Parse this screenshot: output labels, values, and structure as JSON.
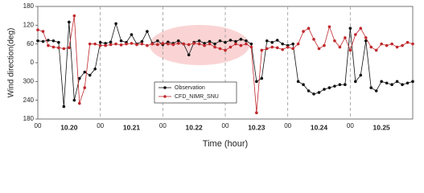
{
  "chart_data": {
    "type": "line",
    "y_label": "Wind direction(deg)",
    "x_label": "Time (hour)",
    "categories": [
      "10.20",
      "10.21",
      "10.22",
      "10.23",
      "10.24",
      "10.25"
    ],
    "x": [
      0,
      2,
      4,
      6,
      8,
      10,
      12,
      14,
      16,
      18,
      20,
      22,
      24,
      26,
      28,
      30,
      32,
      34,
      36,
      38,
      40,
      42,
      44,
      46,
      48,
      50,
      52,
      54,
      56,
      58,
      60,
      62,
      64,
      66,
      68,
      70,
      72,
      74,
      76,
      78,
      80,
      82,
      84,
      86,
      88,
      90,
      92,
      94,
      96,
      98,
      100,
      102,
      104,
      106,
      108,
      110,
      112,
      114,
      116,
      118,
      120,
      122,
      124,
      126,
      128,
      130,
      132,
      134,
      136,
      138,
      140,
      142,
      144
    ],
    "xlim": [
      0,
      144
    ],
    "xticks": [
      {
        "value": 0,
        "label": "00"
      },
      {
        "value": 24,
        "label": "00"
      },
      {
        "value": 48,
        "label": "00"
      },
      {
        "value": 72,
        "label": "00"
      },
      {
        "value": 96,
        "label": "00"
      },
      {
        "value": 120,
        "label": "00"
      }
    ],
    "ylim": [
      -180,
      180
    ],
    "yticks": [
      180,
      120,
      60,
      0,
      {
        "value": -60,
        "label": "300"
      },
      {
        "value": -120,
        "label": "240"
      },
      {
        "value": -180,
        "label": "180"
      }
    ],
    "x_grid": true,
    "legend": "bottom-center",
    "series": [
      {
        "name": "Observation",
        "color": "#111111",
        "values": [
          70,
          68,
          72,
          70,
          65,
          -140,
          130,
          -120,
          -50,
          -30,
          -40,
          -20,
          65,
          62,
          66,
          125,
          70,
          65,
          90,
          60,
          68,
          100,
          62,
          70,
          58,
          66,
          62,
          70,
          60,
          25,
          65,
          70,
          62,
          68,
          60,
          70,
          65,
          72,
          68,
          75,
          70,
          60,
          -60,
          -50,
          70,
          65,
          72,
          60,
          55,
          60,
          -60,
          -70,
          -90,
          -100,
          -95,
          -85,
          -80,
          -75,
          -70,
          -70,
          110,
          -60,
          -40,
          70,
          -80,
          -90,
          -60,
          -65,
          -70,
          -60,
          -70,
          -65,
          -60
        ]
      },
      {
        "name": "CFD_NIMR_SNU",
        "color": "#c0282d",
        "values": [
          105,
          100,
          55,
          50,
          48,
          45,
          48,
          150,
          -130,
          -80,
          60,
          60,
          55,
          55,
          58,
          60,
          57,
          60,
          62,
          58,
          60,
          55,
          60,
          58,
          62,
          60,
          58,
          62,
          60,
          58,
          62,
          60,
          55,
          60,
          50,
          45,
          40,
          50,
          60,
          55,
          60,
          50,
          -160,
          40,
          45,
          50,
          48,
          42,
          50,
          45,
          60,
          100,
          110,
          75,
          45,
          55,
          115,
          70,
          50,
          80,
          40,
          90,
          110,
          80,
          50,
          40,
          60,
          55,
          60,
          50,
          55,
          65,
          60
        ]
      }
    ]
  }
}
